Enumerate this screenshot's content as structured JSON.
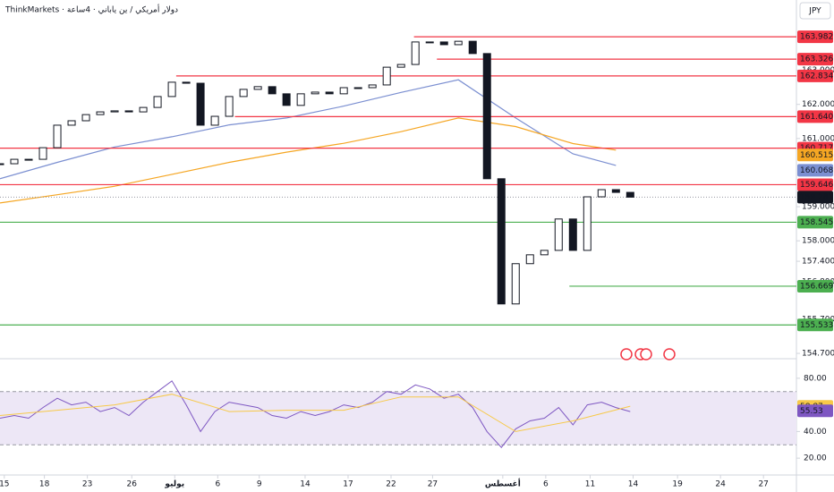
{
  "chart_data": {
    "type": "candlestick",
    "title": "ThinkMarkets · دولار أمريكي / ين ياباني · 4ساعة",
    "currency": "JPY",
    "xlim": [
      0,
      55.6
    ],
    "xticks": [
      {
        "value": 0.3,
        "label": "15"
      },
      {
        "value": 3.1,
        "label": "18"
      },
      {
        "value": 6.1,
        "label": "23"
      },
      {
        "value": 9.2,
        "label": "26"
      },
      {
        "value": 12.2,
        "label": "يوليو"
      },
      {
        "value": 15.2,
        "label": "6"
      },
      {
        "value": 18.1,
        "label": "9"
      },
      {
        "value": 21.3,
        "label": "14"
      },
      {
        "value": 24.3,
        "label": "17"
      },
      {
        "value": 27.3,
        "label": "22"
      },
      {
        "value": 30.2,
        "label": "27"
      },
      {
        "value": 35.1,
        "label": "أغسطس"
      },
      {
        "value": 38.1,
        "label": "6"
      },
      {
        "value": 41.2,
        "label": "11"
      },
      {
        "value": 44.2,
        "label": "14"
      },
      {
        "value": 47.3,
        "label": "19"
      },
      {
        "value": 50.3,
        "label": "24"
      },
      {
        "value": 53.3,
        "label": "27"
      }
    ],
    "ylim": [
      154.57,
      165.06
    ],
    "yticks": [
      {
        "value": 163,
        "label": "163.000"
      },
      {
        "value": 162,
        "label": "162.000"
      },
      {
        "value": 161,
        "label": "161.000"
      },
      {
        "value": 159,
        "label": "159.000"
      },
      {
        "value": 158,
        "label": "158.000"
      },
      {
        "value": 157.4,
        "label": "157.400"
      },
      {
        "value": 156.8,
        "label": "156.800"
      },
      {
        "value": 155.7,
        "label": "155.700"
      },
      {
        "value": 154.7,
        "label": "154.700"
      }
    ],
    "close": [
      160.26,
      160.39,
      160.39,
      160.73,
      161.39,
      161.52,
      161.7,
      161.78,
      161.81,
      161.78,
      161.91,
      162.23,
      162.65,
      162.62,
      161.39,
      161.65,
      162.23,
      162.44,
      162.52,
      162.31,
      161.97,
      162.31,
      162.36,
      162.31,
      162.49,
      162.49,
      162.57,
      163.09,
      163.17,
      163.83,
      163.83,
      163.75,
      163.85,
      163.49,
      159.82,
      156.15,
      157.33,
      157.59,
      157.72,
      158.64,
      157.72,
      159.29,
      159.5,
      159.42,
      159.28
    ],
    "candle_color": "#131722",
    "ma_lines": [
      {
        "color": "#7b8fd1",
        "x": [
          0,
          4,
          8,
          12,
          16,
          20,
          24,
          28,
          32,
          36,
          40,
          43
        ],
        "values": [
          159.82,
          160.3,
          160.75,
          161.05,
          161.4,
          161.6,
          161.95,
          162.35,
          162.72,
          161.6,
          160.55,
          160.21
        ],
        "tag": {
          "value": 160.068,
          "label": "160.068"
        }
      },
      {
        "color": "#f5a623",
        "x": [
          0,
          4,
          8,
          12,
          16,
          20,
          24,
          28,
          32,
          36,
          40,
          43
        ],
        "values": [
          159.11,
          159.35,
          159.6,
          159.95,
          160.3,
          160.6,
          160.86,
          161.2,
          161.6,
          161.35,
          160.85,
          160.66
        ],
        "tag": {
          "value": 160.515,
          "label": "160.515"
        }
      }
    ],
    "current": {
      "value": 159.281,
      "label": "159.281"
    },
    "levels": [
      {
        "value": 163.982,
        "label": "163.982",
        "color": "#f23645",
        "from": 28.9
      },
      {
        "value": 163.326,
        "label": "163.326",
        "color": "#f23645",
        "from": 30.5
      },
      {
        "value": 162.834,
        "label": "162.834",
        "color": "#f23645",
        "from": 12.3
      },
      {
        "value": 161.64,
        "label": "161.640",
        "color": "#f23645",
        "from": 16.4
      },
      {
        "value": 160.717,
        "label": "160.717",
        "color": "#f23645",
        "from": 0
      },
      {
        "value": 159.646,
        "label": "159.646",
        "color": "#f23645",
        "from": 0
      },
      {
        "value": 158.545,
        "label": "158.545",
        "color": "#4caf50",
        "from": 0
      },
      {
        "value": 156.669,
        "label": "156.669",
        "color": "#4caf50",
        "from": 39.75
      },
      {
        "value": 155.533,
        "label": "155.533",
        "color": "#4caf50",
        "from": 0
      }
    ],
    "rsi": {
      "ylim": [
        8,
        92
      ],
      "yticks": [
        {
          "value": 80,
          "label": "80.00"
        },
        {
          "value": 40,
          "label": "40.00"
        },
        {
          "value": 20,
          "label": "20.00"
        }
      ],
      "band": [
        30,
        70
      ],
      "color": "#7e57c2",
      "values": [
        50,
        52,
        50,
        58,
        65,
        60,
        62,
        55,
        58,
        52,
        62,
        70,
        78,
        60,
        40,
        55,
        62,
        60,
        58,
        52,
        50,
        55,
        52,
        55,
        60,
        58,
        62,
        70,
        68,
        75,
        72,
        65,
        68,
        58,
        40,
        28,
        42,
        48,
        50,
        58,
        45,
        60,
        62,
        58,
        55
      ],
      "ma": {
        "color": "#f7c948",
        "x": [
          0,
          4,
          8,
          12,
          16,
          20,
          24,
          28,
          32,
          36,
          40,
          44
        ],
        "values": [
          52,
          56,
          60,
          68,
          55,
          56,
          56,
          66,
          66,
          40,
          48,
          59
        ]
      },
      "tags": [
        {
          "value": 58.87,
          "label": "58.87",
          "color": "#f7c948"
        },
        {
          "value": 55.53,
          "label": "55.53",
          "color": "#7e57c2"
        }
      ]
    }
  }
}
